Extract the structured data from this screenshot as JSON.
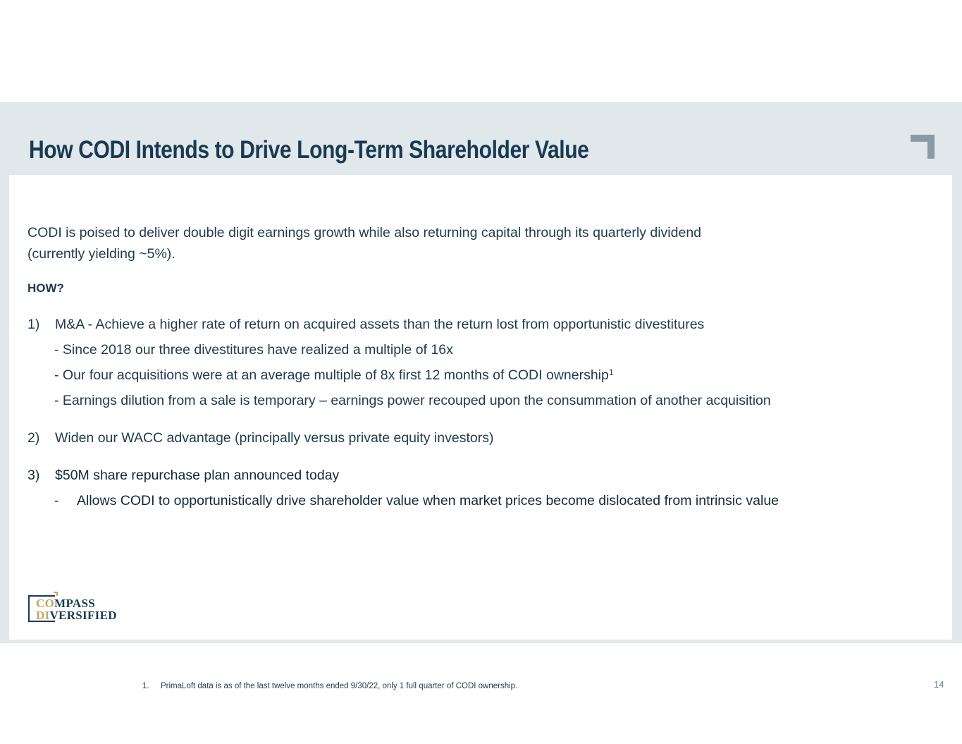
{
  "slide": {
    "title": "How CODI Intends to Drive Long-Term Shareholder Value",
    "intro_line1": "CODI is poised to deliver double digit earnings growth while also returning capital through its quarterly dividend",
    "intro_line2": "(currently yielding ~5%).",
    "how_label": "HOW?",
    "items": [
      {
        "num": "1)",
        "text": "M&A - Achieve a higher rate of return on acquired assets than the return lost from opportunistic divestitures",
        "subs": [
          "- Since 2018 our three divestitures have realized a multiple of 16x",
          "- Our four acquisitions were at an average multiple of 8x first 12 months of CODI ownership",
          "- Earnings dilution from a sale is temporary – earnings power recouped upon the consummation of another acquisition"
        ],
        "sub2_sup": "1"
      },
      {
        "num": "2)",
        "text": "Widen our WACC advantage (principally versus private equity investors)"
      },
      {
        "num": "3)",
        "text": "$50M share repurchase plan announced today",
        "sub_dash": "-",
        "sub_text": "Allows CODI to opportunistically drive shareholder value when market prices become dislocated from intrinsic value"
      }
    ],
    "footnote_num": "1.",
    "footnote_text": "PrimaLoft data is as of the last twelve months ended 9/30/22, only 1 full quarter of CODI ownership.",
    "page_number": "14"
  },
  "logo": {
    "line1_gold": "CO",
    "line1_rest": "MPASS",
    "line2_gold": "DI",
    "line2_rest": "VERSIFIED"
  },
  "colors": {
    "frame_background": "#e0e8eb",
    "title": "#1b3a52",
    "body_text": "#1f3a4d",
    "logo_gold": "#c8a45e",
    "corner_mark": "#8a9aa5"
  }
}
